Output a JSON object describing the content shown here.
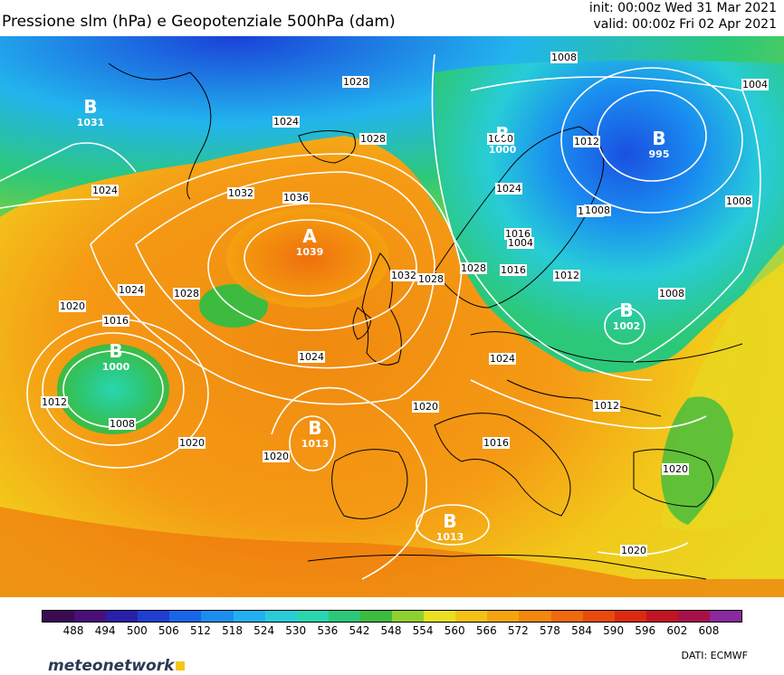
{
  "title": "Pressione slm (hPa) e Geopotenziale 500hPa (dam)",
  "init": "init: 00:00z Wed 31 Mar 2021",
  "valid": "valid: 00:00z Fri 02 Apr 2021",
  "centers": [
    {
      "letter": "A",
      "value": "1039"
    },
    {
      "letter": "B",
      "value": "1031"
    },
    {
      "letter": "B",
      "value": "1000"
    },
    {
      "letter": "B",
      "value": "995"
    },
    {
      "letter": "B",
      "value": "1000"
    },
    {
      "letter": "B",
      "value": "1013"
    },
    {
      "letter": "B",
      "value": "1013"
    },
    {
      "letter": "B",
      "value": "1002"
    }
  ],
  "isobar_labels": [
    "1008",
    "1004",
    "1028",
    "1024",
    "1028",
    "1028",
    "1024",
    "1032",
    "1036",
    "1024",
    "1028",
    "1032",
    "1028",
    "1024",
    "1020",
    "1016",
    "1024",
    "1020",
    "1012",
    "1008",
    "1020",
    "1020",
    "1024",
    "1016",
    "1020",
    "1012",
    "1008",
    "1004",
    "1000",
    "1008",
    "1016",
    "1012",
    "1020",
    "1016",
    "1008",
    "1012",
    "1020"
  ],
  "colorbar": {
    "ticks": [
      "488",
      "494",
      "500",
      "506",
      "512",
      "518",
      "524",
      "530",
      "536",
      "542",
      "548",
      "554",
      "560",
      "566",
      "572",
      "578",
      "584",
      "590",
      "596",
      "602",
      "608"
    ],
    "colors": [
      "#3a0a52",
      "#4a0f7a",
      "#2a1fa8",
      "#1f3fd0",
      "#1a66e8",
      "#1a8ef0",
      "#22b0f0",
      "#27ccd8",
      "#2ad6b0",
      "#2cc87a",
      "#3dbb3f",
      "#8fd030",
      "#e8e020",
      "#f3c214",
      "#f5a30f",
      "#f4870d",
      "#ef6a0c",
      "#e84a0c",
      "#dc2a10",
      "#c21424",
      "#a8104a",
      "#8a2a9e"
    ]
  },
  "brand": "meteonetwork",
  "credit": "DATI:  ECMWF"
}
